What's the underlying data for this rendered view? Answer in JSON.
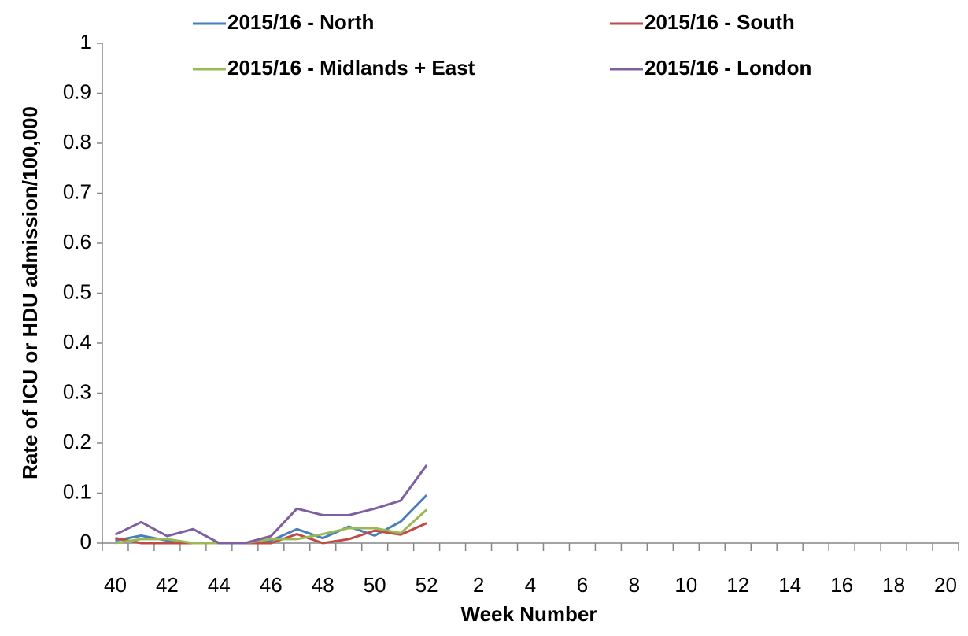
{
  "chart_data": {
    "type": "line",
    "x_label": "Week Number",
    "y_label": "Rate of ICU or HDU admission/100,000",
    "categories": [
      40,
      null,
      42,
      null,
      44,
      null,
      46,
      null,
      48,
      null,
      50,
      null,
      52,
      null,
      2,
      null,
      4,
      null,
      6,
      null,
      8,
      null,
      10,
      null,
      12,
      null,
      14,
      null,
      16,
      null,
      18,
      null,
      20
    ],
    "series": [
      {
        "name": "2015/16 - North",
        "color": "#4a7ebb",
        "values": [
          0.005,
          0.015,
          0.005,
          0,
          0,
          0,
          0.005,
          0.028,
          0.01,
          0.033,
          0.015,
          0.043,
          0.096,
          null,
          null,
          null,
          null,
          null,
          null,
          null,
          null,
          null,
          null,
          null,
          null,
          null,
          null,
          null,
          null,
          null,
          null,
          null,
          null
        ]
      },
      {
        "name": "2015/16 - South",
        "color": "#be4b48",
        "values": [
          0.01,
          0,
          0,
          0,
          0,
          0,
          0,
          0.018,
          0,
          0.008,
          0.025,
          0.017,
          0.04,
          null,
          null,
          null,
          null,
          null,
          null,
          null,
          null,
          null,
          null,
          null,
          null,
          null,
          null,
          null,
          null,
          null,
          null,
          null,
          null
        ]
      },
      {
        "name": "2015/16 - Midlands + East",
        "color": "#98b954",
        "values": [
          0,
          0.008,
          0.008,
          0,
          0,
          0,
          0.008,
          0.008,
          0.018,
          0.03,
          0.03,
          0.02,
          0.067,
          null,
          null,
          null,
          null,
          null,
          null,
          null,
          null,
          null,
          null,
          null,
          null,
          null,
          null,
          null,
          null,
          null,
          null,
          null,
          null
        ]
      },
      {
        "name": "2015/16 - London",
        "color": "#7d60a0",
        "values": [
          0.017,
          0.042,
          0.014,
          0.028,
          0,
          0,
          0.014,
          0.069,
          0.056,
          0.056,
          0.069,
          0.085,
          0.156,
          null,
          null,
          null,
          null,
          null,
          null,
          null,
          null,
          null,
          null,
          null,
          null,
          null,
          null,
          null,
          null,
          null,
          null,
          null,
          null
        ]
      }
    ],
    "ylim": [
      0,
      1
    ],
    "yticks": [
      0,
      0.1,
      0.2,
      0.3,
      0.4,
      0.5,
      0.6,
      0.7,
      0.8,
      0.9,
      1
    ],
    "grid": false
  }
}
